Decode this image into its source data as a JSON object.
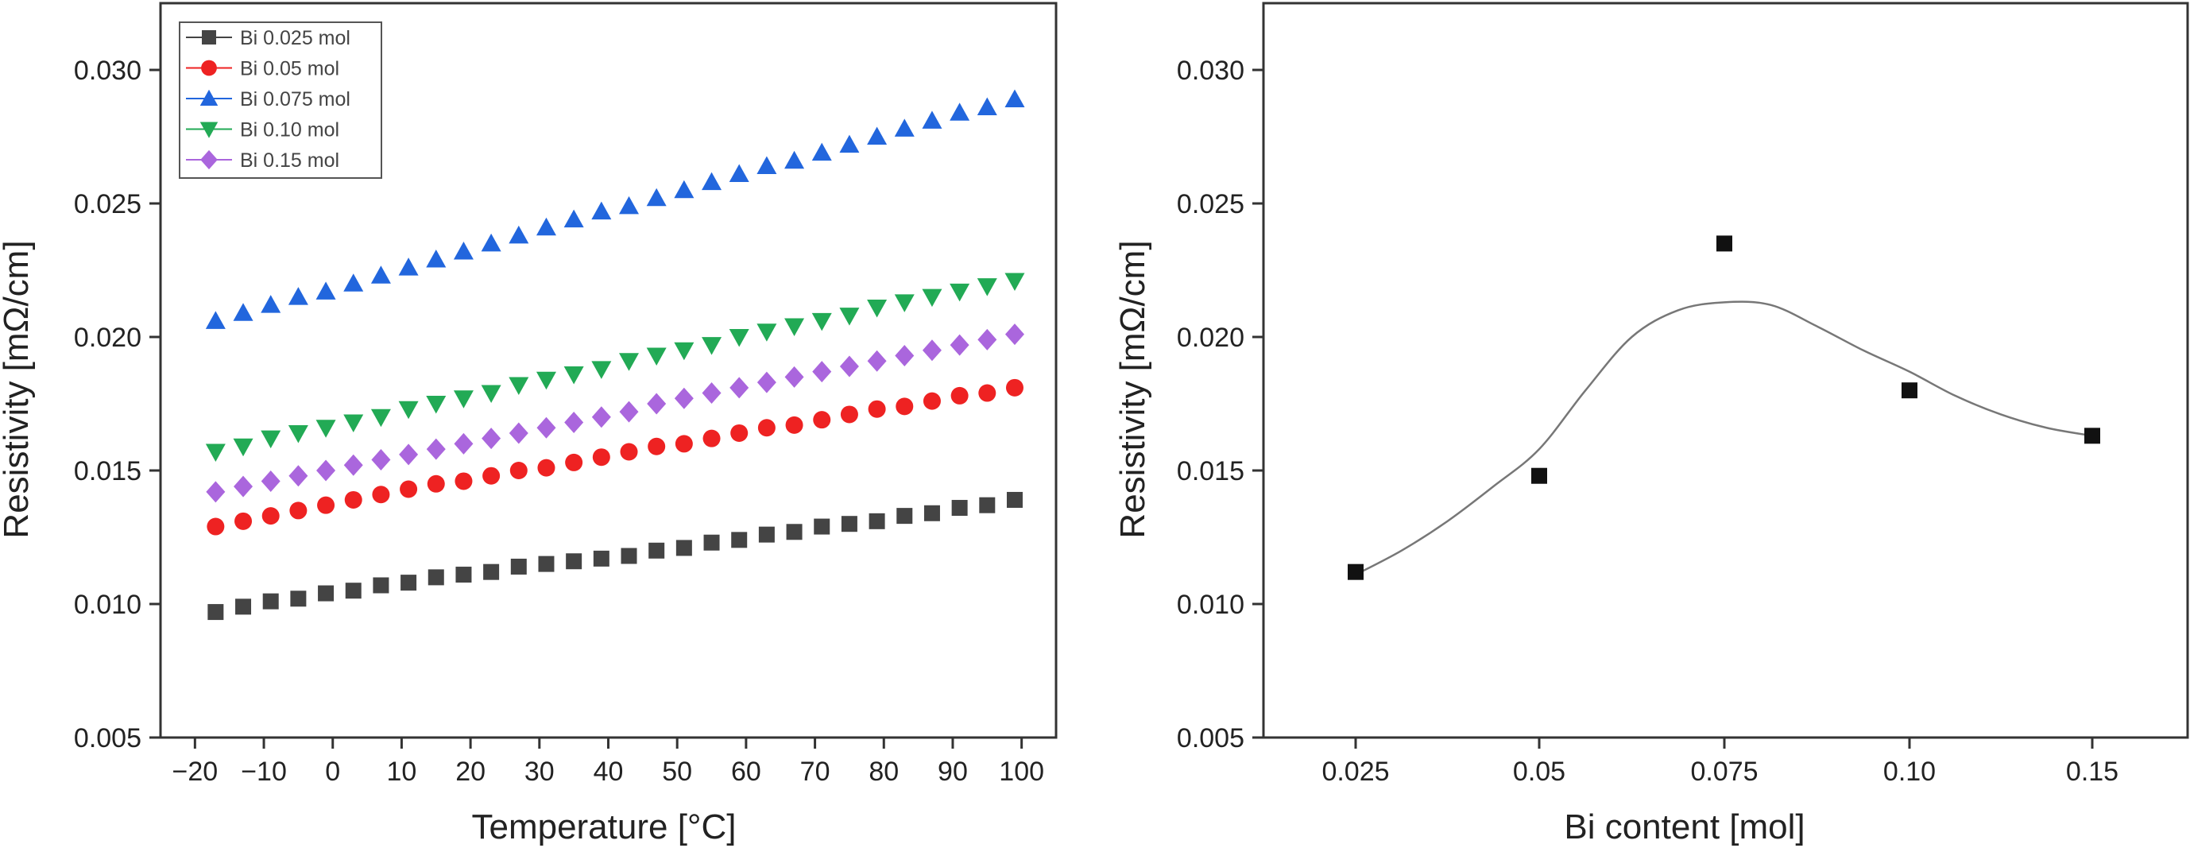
{
  "chart_data": [
    {
      "type": "scatter",
      "xlabel": "Temperature [°C]",
      "ylabel": "Resistivity [mΩ/cm]",
      "xlim": [
        -25,
        105
      ],
      "ylim": [
        0.005,
        0.0325
      ],
      "x_ticks": [
        -20,
        -10,
        0,
        10,
        20,
        30,
        40,
        50,
        60,
        70,
        80,
        90,
        100
      ],
      "x_tick_labels": [
        "−20",
        "−10",
        "0",
        "10",
        "20",
        "30",
        "40",
        "50",
        "60",
        "70",
        "80",
        "90",
        "100"
      ],
      "y_ticks": [
        0.005,
        0.01,
        0.015,
        0.02,
        0.025,
        0.03
      ],
      "y_tick_labels": [
        "0.005",
        "0.010",
        "0.015",
        "0.020",
        "0.025",
        "0.030"
      ],
      "legend_position": "top-left",
      "x": [
        -17,
        -13,
        -9,
        -5,
        -1,
        3,
        7,
        11,
        15,
        19,
        23,
        27,
        31,
        35,
        39,
        43,
        47,
        51,
        55,
        59,
        63,
        67,
        71,
        75,
        79,
        83,
        87,
        91,
        95,
        99
      ],
      "series": [
        {
          "name": "Bi 0.025 mol",
          "marker": "square",
          "color": "#444444",
          "values": [
            0.0097,
            0.0099,
            0.0101,
            0.0102,
            0.0104,
            0.0105,
            0.0107,
            0.0108,
            0.011,
            0.0111,
            0.0112,
            0.0114,
            0.0115,
            0.0116,
            0.0117,
            0.0118,
            0.012,
            0.0121,
            0.0123,
            0.0124,
            0.0126,
            0.0127,
            0.0129,
            0.013,
            0.0131,
            0.0133,
            0.0134,
            0.0136,
            0.0137,
            0.0139
          ]
        },
        {
          "name": "Bi 0.05 mol",
          "marker": "circle",
          "color": "#ee2222",
          "values": [
            0.0129,
            0.0131,
            0.0133,
            0.0135,
            0.0137,
            0.0139,
            0.0141,
            0.0143,
            0.0145,
            0.0146,
            0.0148,
            0.015,
            0.0151,
            0.0153,
            0.0155,
            0.0157,
            0.0159,
            0.016,
            0.0162,
            0.0164,
            0.0166,
            0.0167,
            0.0169,
            0.0171,
            0.0173,
            0.0174,
            0.0176,
            0.0178,
            0.0179,
            0.0181
          ]
        },
        {
          "name": "Bi 0.075 mol",
          "marker": "triangle-up",
          "color": "#2266dd",
          "values": [
            0.0206,
            0.0209,
            0.0212,
            0.0215,
            0.0217,
            0.022,
            0.0223,
            0.0226,
            0.0229,
            0.0232,
            0.0235,
            0.0238,
            0.0241,
            0.0244,
            0.0247,
            0.0249,
            0.0252,
            0.0255,
            0.0258,
            0.0261,
            0.0264,
            0.0266,
            0.0269,
            0.0272,
            0.0275,
            0.0278,
            0.0281,
            0.0284,
            0.0286,
            0.0289
          ]
        },
        {
          "name": "Bi 0.10 mol",
          "marker": "triangle-down",
          "color": "#22aa55",
          "values": [
            0.0157,
            0.0159,
            0.0162,
            0.0164,
            0.0166,
            0.0168,
            0.017,
            0.0173,
            0.0175,
            0.0177,
            0.0179,
            0.0182,
            0.0184,
            0.0186,
            0.0188,
            0.0191,
            0.0193,
            0.0195,
            0.0197,
            0.02,
            0.0202,
            0.0204,
            0.0206,
            0.0208,
            0.0211,
            0.0213,
            0.0215,
            0.0217,
            0.0219,
            0.0221
          ]
        },
        {
          "name": "Bi 0.15 mol",
          "marker": "diamond",
          "color": "#aa66dd",
          "values": [
            0.0142,
            0.0144,
            0.0146,
            0.0148,
            0.015,
            0.0152,
            0.0154,
            0.0156,
            0.0158,
            0.016,
            0.0162,
            0.0164,
            0.0166,
            0.0168,
            0.017,
            0.0172,
            0.0175,
            0.0177,
            0.0179,
            0.0181,
            0.0183,
            0.0185,
            0.0187,
            0.0189,
            0.0191,
            0.0193,
            0.0195,
            0.0197,
            0.0199,
            0.0201
          ]
        }
      ]
    },
    {
      "type": "scatter",
      "xlabel": "Bi content [mol]",
      "ylabel": "Resistivity [mΩ/cm]",
      "ylim": [
        0.005,
        0.0325
      ],
      "categories": [
        "0.025",
        "0.05",
        "0.075",
        "0.10",
        "0.15"
      ],
      "y_ticks": [
        0.005,
        0.01,
        0.015,
        0.02,
        0.025,
        0.03
      ],
      "y_tick_labels": [
        "0.005",
        "0.010",
        "0.015",
        "0.020",
        "0.025",
        "0.030"
      ],
      "series": [
        {
          "marker": "square",
          "color": "#111111",
          "values": [
            0.0112,
            0.0148,
            0.0235,
            0.018,
            0.0163
          ]
        }
      ],
      "fit_curve": {
        "color": "#777777",
        "x_index": [
          0.0,
          0.25,
          0.5,
          0.75,
          1.0,
          1.25,
          1.5,
          1.75,
          2.0,
          2.25,
          2.5,
          2.75,
          3.0,
          3.25,
          3.5,
          3.75,
          4.0
        ],
        "values": [
          0.0111,
          0.012,
          0.0131,
          0.0144,
          0.0158,
          0.018,
          0.02,
          0.021,
          0.0213,
          0.0212,
          0.0204,
          0.0195,
          0.0187,
          0.0178,
          0.0171,
          0.0166,
          0.0163
        ]
      }
    }
  ]
}
